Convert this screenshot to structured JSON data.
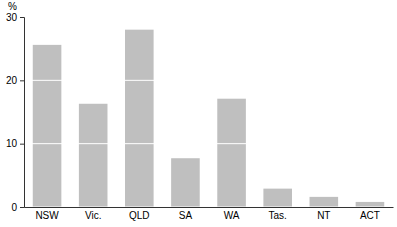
{
  "chart_data": {
    "type": "bar",
    "ylabel": "%",
    "categories": [
      "NSW",
      "Vic.",
      "QLD",
      "SA",
      "WA",
      "Tas.",
      "NT",
      "ACT"
    ],
    "values": [
      25.6,
      16.3,
      28.0,
      7.7,
      17.1,
      2.9,
      1.6,
      0.8
    ],
    "color": "#bfbfbf",
    "ylim": [
      0,
      30
    ],
    "yticks": [
      0,
      10,
      20,
      30
    ],
    "grid": true
  }
}
